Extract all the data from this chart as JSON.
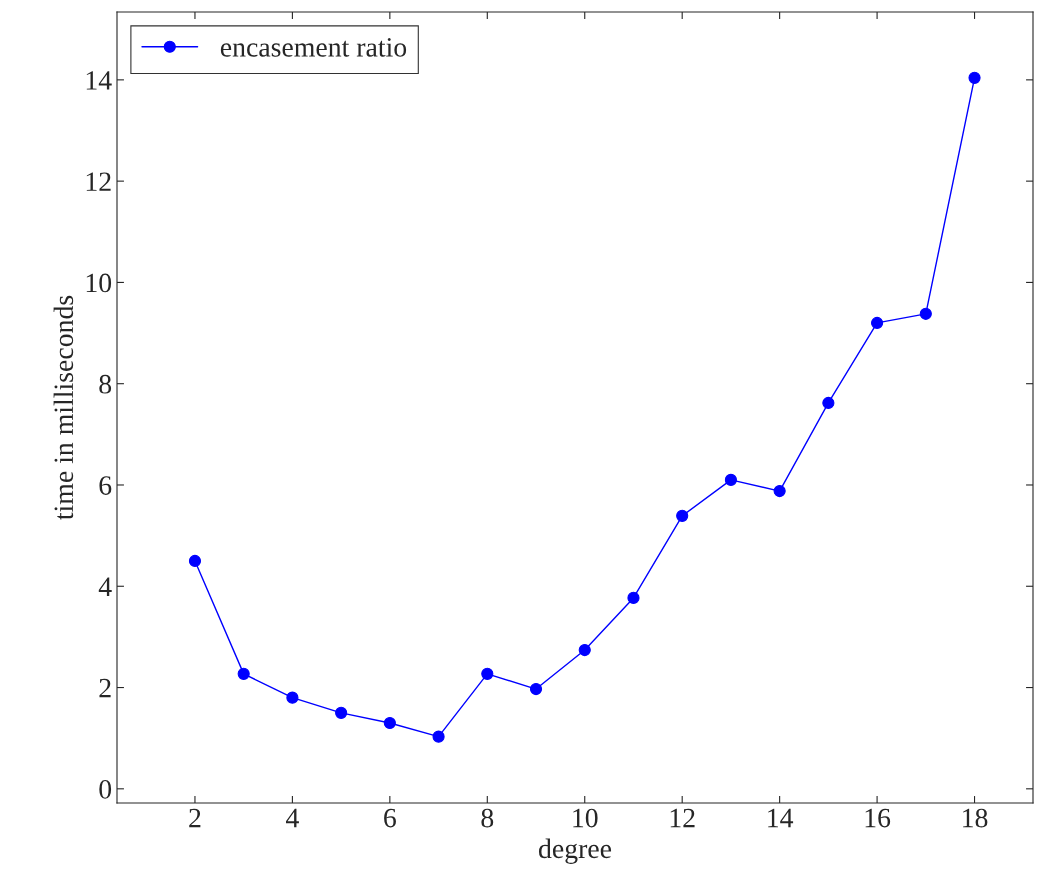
{
  "chart_data": {
    "type": "line",
    "xlabel": "degree",
    "ylabel": "time in milliseconds",
    "x": [
      2,
      3,
      4,
      5,
      6,
      7,
      8,
      9,
      10,
      11,
      12,
      13,
      14,
      15,
      16,
      17,
      18
    ],
    "series": [
      {
        "name": "encasement ratio",
        "color": "#0000ff",
        "values": [
          4.5,
          2.27,
          1.8,
          1.5,
          1.3,
          1.03,
          2.27,
          1.97,
          2.74,
          3.77,
          5.39,
          6.1,
          5.88,
          7.62,
          9.2,
          9.38,
          14.04
        ]
      }
    ],
    "xlim": [
      0.4,
      19.2
    ],
    "ylim": [
      -0.28,
      15.34
    ],
    "xticks": [
      2,
      4,
      6,
      8,
      10,
      12,
      14,
      16,
      18
    ],
    "yticks": [
      0,
      2,
      4,
      6,
      8,
      10,
      12,
      14
    ],
    "marker": "circle",
    "line_style": "solid",
    "legend": "top left",
    "grid": false
  }
}
